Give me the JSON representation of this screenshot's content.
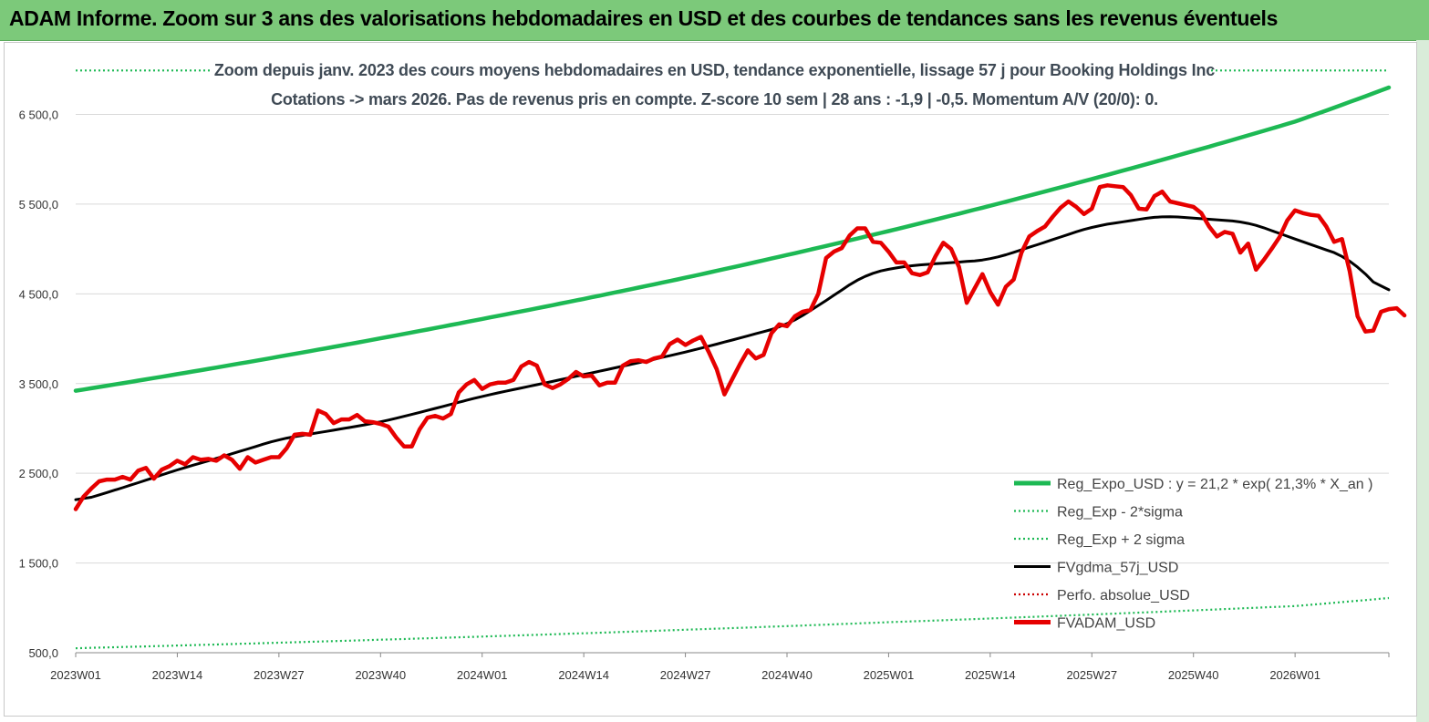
{
  "banner": {
    "title": "ADAM Informe. Zoom sur 3 ans des valorisations hebdomadaires en USD et des courbes de tendances sans les revenus éventuels"
  },
  "chart_data": {
    "type": "line",
    "title": "Zoom depuis janv. 2023 des cours moyens hebdomadaires en USD, tendance exponentielle, lissage 57 j pour Booking Holdings Inc",
    "subtitle": "Cotations -> mars 2026. Pas de revenus pris en  compte. Z-score 10 sem  | 28 ans : -1,9 | -0,5. Momentum A/V (20/0): 0.",
    "xlabel": "",
    "ylabel": "",
    "ylim": [
      500,
      6800
    ],
    "yticks": [
      "500,0",
      "1 500,0",
      "2 500,0",
      "3 500,0",
      "4 500,0",
      "5 500,0",
      "6 500,0"
    ],
    "xticks": [
      "2023W01",
      "2023W14",
      "2023W27",
      "2023W40",
      "2024W01",
      "2024W14",
      "2024W27",
      "2024W40",
      "2025W01",
      "2025W14",
      "2025W27",
      "2025W40",
      "2026W01"
    ],
    "grid": "horizontal",
    "legend_position": "bottom-right",
    "x_weeks_total": 168,
    "series": [
      {
        "name": "Reg_Expo_USD : y = 21,2 * exp( 21,3% *  X_an )",
        "color": "#1db954",
        "style": "solid",
        "anchors": [
          [
            0,
            3420
          ],
          [
            26,
            3800
          ],
          [
            52,
            4220
          ],
          [
            78,
            4680
          ],
          [
            104,
            5200
          ],
          [
            130,
            5780
          ],
          [
            156,
            6420
          ],
          [
            168,
            6800
          ]
        ]
      },
      {
        "name": "Reg_Exp - 2*sigma",
        "color": "#1db954",
        "style": "dotted",
        "anchors": [
          [
            0,
            550
          ],
          [
            52,
            680
          ],
          [
            104,
            840
          ],
          [
            156,
            1020
          ],
          [
            168,
            1110
          ]
        ]
      },
      {
        "name": "Reg_Exp + 2 sigma",
        "color": "#1db954",
        "style": "dotted",
        "anchors": [
          [
            0,
            6990
          ],
          [
            168,
            6990
          ]
        ]
      },
      {
        "name": "FVgdma_57j_USD",
        "color": "#000000",
        "style": "solid",
        "anchors": [
          [
            0,
            2180
          ],
          [
            13,
            2540
          ],
          [
            26,
            2880
          ],
          [
            39,
            3070
          ],
          [
            52,
            3360
          ],
          [
            65,
            3600
          ],
          [
            78,
            3850
          ],
          [
            91,
            4150
          ],
          [
            101,
            4720
          ],
          [
            106,
            4810
          ],
          [
            117,
            4880
          ],
          [
            130,
            5250
          ],
          [
            139,
            5370
          ],
          [
            150,
            5300
          ],
          [
            163,
            4900
          ],
          [
            168,
            4460
          ]
        ]
      },
      {
        "name": "Perfo. absolue_USD",
        "color": "#cc0000",
        "style": "dotted",
        "anchors": []
      },
      {
        "name": "FVADAM_USD",
        "color": "#e60000",
        "style": "solid",
        "values": [
          2100,
          2240,
          2330,
          2410,
          2430,
          2430,
          2460,
          2430,
          2530,
          2560,
          2440,
          2540,
          2580,
          2640,
          2600,
          2680,
          2650,
          2660,
          2640,
          2700,
          2650,
          2550,
          2680,
          2620,
          2650,
          2680,
          2680,
          2780,
          2930,
          2940,
          2930,
          3200,
          3160,
          3060,
          3100,
          3100,
          3150,
          3080,
          3070,
          3050,
          3020,
          2900,
          2800,
          2800,
          2990,
          3120,
          3140,
          3110,
          3160,
          3400,
          3490,
          3540,
          3440,
          3490,
          3510,
          3510,
          3540,
          3690,
          3740,
          3700,
          3490,
          3450,
          3490,
          3550,
          3630,
          3580,
          3590,
          3480,
          3510,
          3510,
          3700,
          3750,
          3760,
          3740,
          3780,
          3800,
          3940,
          3990,
          3930,
          3980,
          4020,
          3850,
          3660,
          3380,
          3550,
          3720,
          3870,
          3780,
          3820,
          4060,
          4160,
          4140,
          4250,
          4300,
          4320,
          4500,
          4900,
          4970,
          5010,
          5150,
          5230,
          5230,
          5080,
          5070,
          4970,
          4850,
          4850,
          4730,
          4710,
          4740,
          4920,
          5070,
          5000,
          4800,
          4400,
          4560,
          4720,
          4520,
          4380,
          4580,
          4660,
          4960,
          5140,
          5200,
          5250,
          5360,
          5460,
          5530,
          5470,
          5390,
          5450,
          5690,
          5710,
          5700,
          5690,
          5600,
          5450,
          5440,
          5590,
          5640,
          5530,
          5510,
          5490,
          5470,
          5400,
          5250,
          5140,
          5190,
          5170,
          4960,
          5060,
          4770,
          4880,
          5000,
          5130,
          5320,
          5430,
          5400,
          5380,
          5370,
          5250,
          5080,
          5110,
          4750,
          4250,
          4080,
          4090,
          4300,
          4330,
          4340,
          4260
        ]
      }
    ]
  }
}
